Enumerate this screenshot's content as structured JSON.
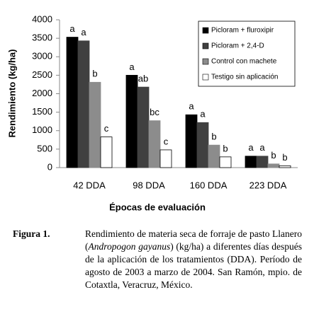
{
  "chart_data": {
    "type": "bar",
    "xlabel": "Épocas de evaluación",
    "ylabel": "Rendimiento (kg/ha)",
    "categories": [
      "42 DDA",
      "98 DDA",
      "160 DDA",
      "223 DDA"
    ],
    "series": [
      {
        "name": "Picloram + fluroxipir",
        "color": "#000000",
        "values": [
          3530,
          2500,
          1430,
          310
        ],
        "letters": [
          "a",
          "a",
          "a",
          "a"
        ]
      },
      {
        "name": "Picloram + 2,4-D",
        "color": "#404040",
        "values": [
          3430,
          2180,
          1220,
          310
        ],
        "letters": [
          "a",
          "ab",
          "a",
          "a"
        ]
      },
      {
        "name": "Control con machete",
        "color": "#8c8c8c",
        "values": [
          2310,
          1270,
          610,
          100
        ],
        "letters": [
          "b",
          "bc",
          "b",
          "b"
        ]
      },
      {
        "name": "Testigo sin aplicación",
        "color": "#ffffff",
        "values": [
          830,
          480,
          290,
          50
        ],
        "letters": [
          "c",
          "c",
          "b",
          "b"
        ]
      }
    ],
    "ylim": [
      0,
      4000
    ],
    "yticks": [
      0,
      500,
      1000,
      1500,
      2000,
      2500,
      3000,
      3500,
      4000
    ],
    "legend": "upper right"
  },
  "caption": {
    "label": "Figura 1.",
    "text": [
      "Rendimiento de materia seca de forraje de pasto Llanero (",
      "Andropogon gayanus",
      ")  (kg/ha) a diferentes días después de la aplicación de los tratamientos (DDA). Período de agosto de 2003 a marzo de 2004. San Ramón, mpio. de Cotaxtla, Veracruz, México."
    ]
  }
}
